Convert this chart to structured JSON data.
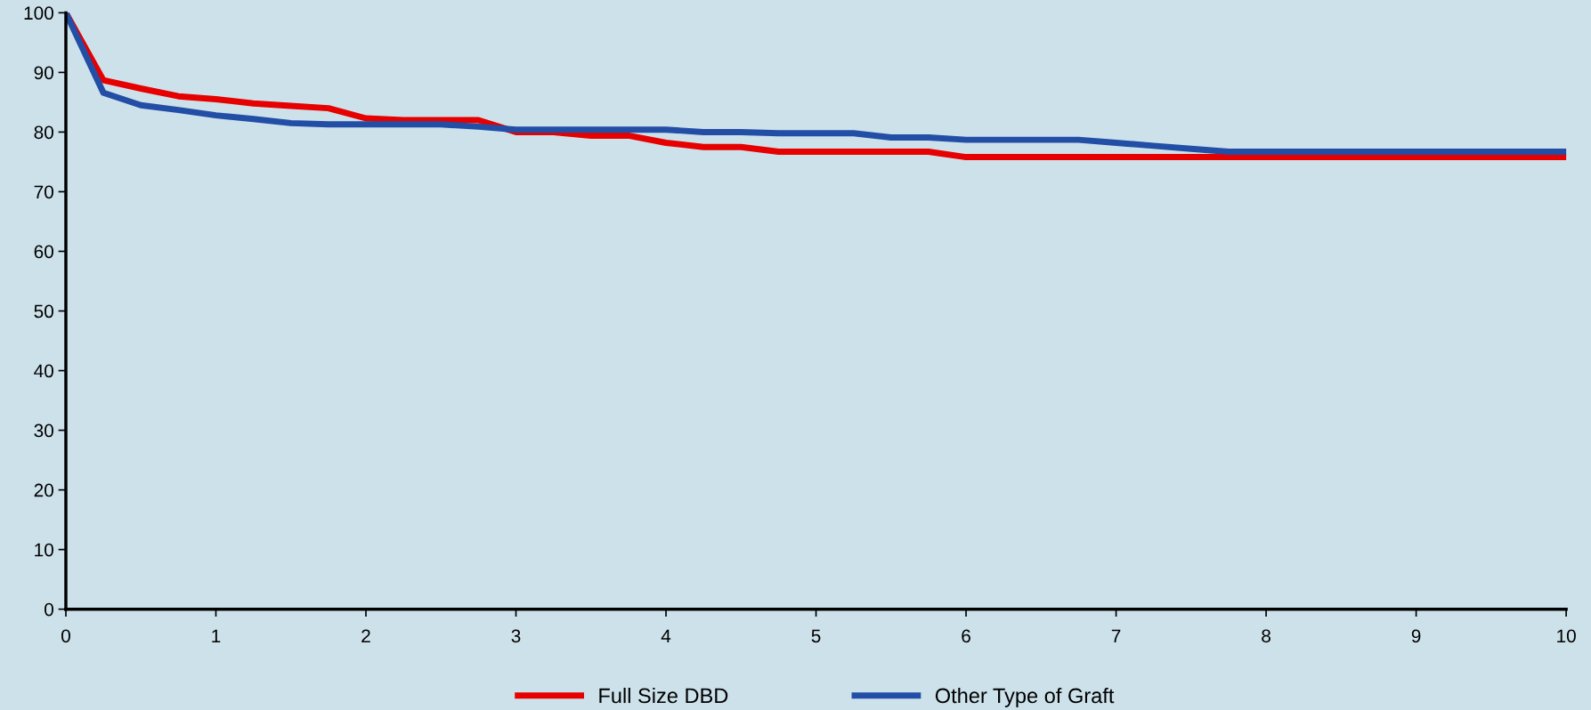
{
  "chart_data": {
    "type": "line",
    "x": [
      0,
      0.25,
      0.5,
      0.75,
      1,
      1.25,
      1.5,
      1.75,
      2,
      2.25,
      2.5,
      2.75,
      3,
      3.25,
      3.5,
      3.75,
      4,
      4.25,
      4.5,
      4.75,
      5,
      5.25,
      5.5,
      5.75,
      6,
      6.25,
      6.5,
      6.75,
      7,
      7.25,
      7.5,
      7.75,
      8,
      10
    ],
    "series": [
      {
        "name": "Full Size DBD",
        "color": "#e60000",
        "values": [
          100,
          88.7,
          87.3,
          86,
          85.5,
          84.8,
          84.4,
          84,
          82.3,
          82,
          82,
          82,
          80,
          80,
          79.4,
          79.4,
          78.2,
          77.5,
          77.5,
          76.7,
          76.7,
          76.7,
          76.7,
          76.7,
          75.8,
          75.8,
          75.8,
          75.8,
          75.8,
          75.8,
          75.8,
          75.8,
          75.8,
          75.8
        ]
      },
      {
        "name": "Other Type of Graft",
        "color": "#224ea6",
        "values": [
          100,
          86.6,
          84.5,
          83.7,
          82.8,
          82.2,
          81.5,
          81.3,
          81.3,
          81.3,
          81.3,
          80.9,
          80.4,
          80.4,
          80.4,
          80.4,
          80.4,
          80,
          80,
          79.8,
          79.8,
          79.8,
          79.1,
          79.1,
          78.7,
          78.7,
          78.7,
          78.7,
          78.2,
          77.7,
          77.2,
          76.7,
          76.7,
          76.7
        ]
      }
    ],
    "xlim": [
      0,
      10
    ],
    "xticks": [
      0,
      1,
      2,
      3,
      4,
      5,
      6,
      7,
      8,
      9,
      10
    ],
    "ylim": [
      0,
      100
    ],
    "yticks": [
      0,
      10,
      20,
      30,
      40,
      50,
      60,
      70,
      80,
      90,
      100
    ],
    "grid": false,
    "legend": "bottom",
    "marker": "none",
    "line_style": "solid"
  }
}
